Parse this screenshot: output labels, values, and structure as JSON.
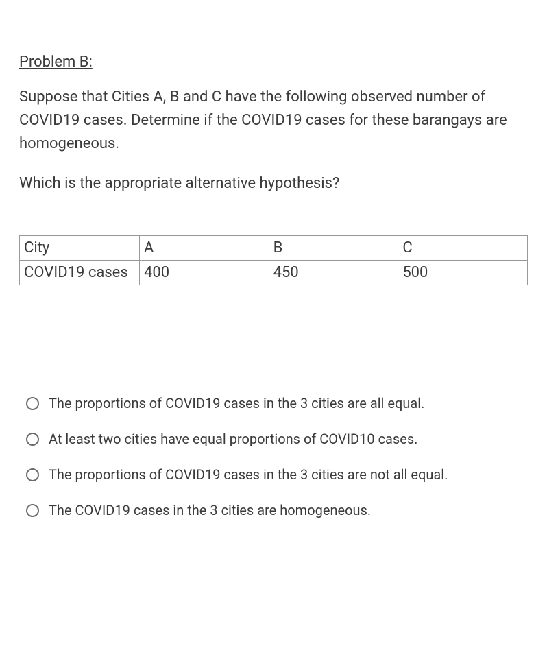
{
  "title": "Problem B:",
  "description": "Suppose that Cities A, B and C have the following observed number of COVID19 cases. Determine if the COVID19 cases for these barangays are homogeneous.",
  "question": "Which is the appropriate alternative hypothesis?",
  "table": {
    "row1": {
      "label": "City",
      "a": "A",
      "b": "B",
      "c": "C"
    },
    "row2": {
      "label": "COVID19 cases",
      "a": "400",
      "b": "450",
      "c": "500"
    }
  },
  "options": [
    {
      "text": "The proportions of COVID19 cases in the 3 cities are all equal."
    },
    {
      "text": "At least two cities have equal proportions of COVID10 cases."
    },
    {
      "text": "The proportions of COVID19 cases in the 3 cities are not all equal."
    },
    {
      "text": "The COVID19 cases in the 3 cities are homogeneous."
    }
  ],
  "colors": {
    "text": "#3b3b3b",
    "border": "#999999",
    "radio_border": "#6b6b6b",
    "background": "#ffffff"
  }
}
